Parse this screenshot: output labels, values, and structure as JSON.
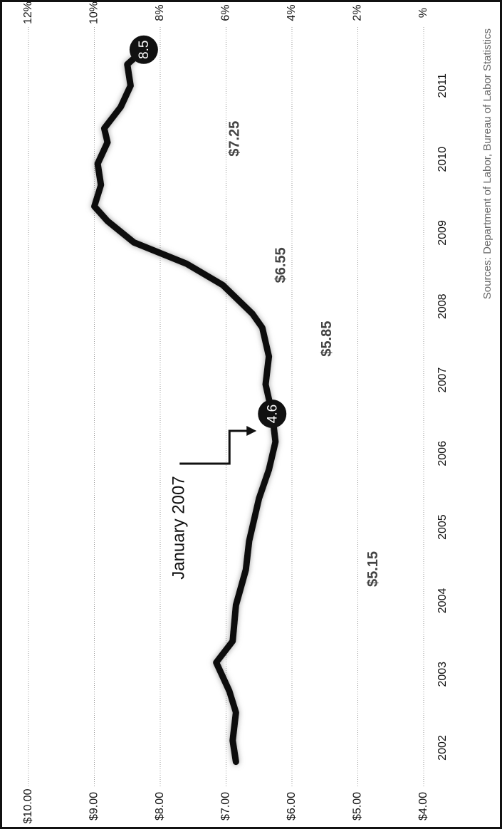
{
  "chart_data": {
    "type": "line",
    "xlim": [
      2002,
      2012.3
    ],
    "xticks": [
      {
        "value": 2002.5,
        "label": "2002"
      },
      {
        "value": 2003.5,
        "label": "2003"
      },
      {
        "value": 2004.5,
        "label": "2004"
      },
      {
        "value": 2005.5,
        "label": "2005"
      },
      {
        "value": 2006.5,
        "label": "2006"
      },
      {
        "value": 2007.5,
        "label": "2007"
      },
      {
        "value": 2008.5,
        "label": "2008"
      },
      {
        "value": 2009.5,
        "label": "2009"
      },
      {
        "value": 2010.5,
        "label": "2010"
      },
      {
        "value": 2011.5,
        "label": "2011"
      }
    ],
    "ylim": [
      4,
      10
    ],
    "yticks": [
      {
        "value": 4,
        "label": "$4.00"
      },
      {
        "value": 5,
        "label": "$5.00"
      },
      {
        "value": 6,
        "label": "$6.00"
      },
      {
        "value": 7,
        "label": "$7.00"
      },
      {
        "value": 8,
        "label": "$8.00"
      },
      {
        "value": 9,
        "label": "$9.00"
      },
      {
        "value": 10,
        "label": "$10.00"
      }
    ],
    "y2lim": [
      0,
      12
    ],
    "y2ticks": [
      {
        "value": 0,
        "label": "%"
      },
      {
        "value": 2,
        "label": "2%"
      },
      {
        "value": 4,
        "label": "4%"
      },
      {
        "value": 6,
        "label": "6%"
      },
      {
        "value": 8,
        "label": "8%"
      },
      {
        "value": 10,
        "label": "10%"
      },
      {
        "value": 12,
        "label": "12%"
      }
    ],
    "grid": true,
    "series": [
      {
        "step": true,
        "color": "#7a7a7a",
        "x": [
          2002.3,
          2007.56,
          2008.56,
          2009.56,
          2012.0
        ],
        "values": [
          5.15,
          5.85,
          6.55,
          7.25,
          7.25
        ],
        "value_labels": [
          "$5.15",
          "$5.85",
          "$6.55",
          "$7.25",
          null
        ]
      },
      {
        "axis": "y2",
        "color": "#111111",
        "x": [
          2002.31,
          2002.6,
          2002.98,
          2003.27,
          2003.66,
          2003.95,
          2004.44,
          2004.92,
          2005.31,
          2005.89,
          2006.28,
          2006.66,
          2007.04,
          2007.44,
          2007.82,
          2008.21,
          2008.4,
          2008.79,
          2009.08,
          2009.37,
          2009.66,
          2009.86,
          2010.15,
          2010.44,
          2010.73,
          2010.92,
          2011.21,
          2011.5,
          2011.79,
          2011.99
        ],
        "values": [
          5.7,
          5.8,
          5.7,
          5.9,
          6.3,
          5.8,
          5.7,
          5.4,
          5.3,
          5.0,
          4.7,
          4.5,
          4.6,
          4.8,
          4.7,
          4.9,
          5.2,
          6.1,
          7.2,
          8.8,
          9.6,
          10.0,
          9.8,
          9.9,
          9.6,
          9.7,
          9.2,
          8.9,
          9.0,
          8.5
        ],
        "value_labels": [
          null,
          null,
          null,
          null,
          null,
          null,
          null,
          null,
          null,
          null,
          null,
          null,
          "4.6",
          null,
          null,
          null,
          null,
          null,
          null,
          null,
          null,
          null,
          null,
          null,
          null,
          null,
          null,
          null,
          null,
          "8.5"
        ]
      }
    ],
    "annotation": "January 2007",
    "source": "Sources:  Department of Labor, Bureau of Labor Statistics"
  }
}
